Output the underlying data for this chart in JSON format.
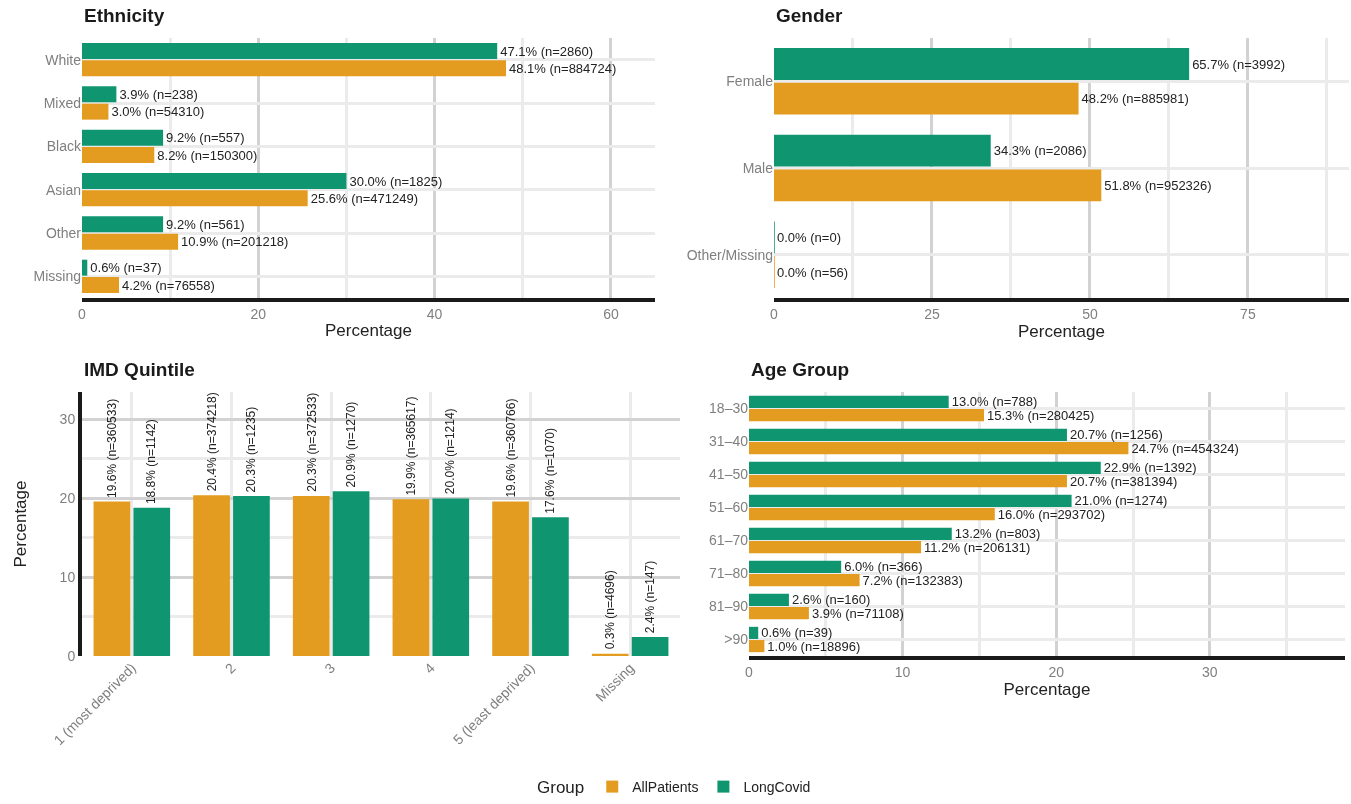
{
  "chart_data": [
    {
      "type": "bar",
      "orientation": "horizontal",
      "title": "Ethnicity",
      "xlabel": "Percentage",
      "categories": [
        "White",
        "Mixed",
        "Black",
        "Asian",
        "Other",
        "Missing"
      ],
      "xlim": [
        0,
        65
      ],
      "xticks": [
        0,
        20,
        40,
        60
      ],
      "grid": true,
      "legend": "bottom",
      "legend_title": "Group",
      "series": [
        {
          "name": "AllPatients",
          "color": "#e39c1f",
          "values": [
            48.1,
            3.0,
            8.2,
            25.6,
            10.9,
            4.2
          ],
          "value_labels": [
            "48.1% (n=884724)",
            "3.0% (n=54310)",
            "8.2% (n=150300)",
            "25.6% (n=471249)",
            "10.9% (n=201218)",
            "4.2% (n=76558)"
          ]
        },
        {
          "name": "LongCovid",
          "color": "#0f9670",
          "values": [
            47.1,
            3.9,
            9.2,
            30.0,
            9.2,
            0.6
          ],
          "value_labels": [
            "47.1% (n=2860)",
            "3.9% (n=238)",
            "9.2% (n=557)",
            "30.0% (n=1825)",
            "9.2% (n=561)",
            "0.6% (n=37)"
          ]
        }
      ]
    },
    {
      "type": "bar",
      "orientation": "horizontal",
      "title": "Gender",
      "xlabel": "Percentage",
      "categories": [
        "Female",
        "Male",
        "Other/Missing"
      ],
      "xlim": [
        0,
        91
      ],
      "xticks": [
        0,
        25,
        50,
        75
      ],
      "grid": true,
      "legend": "bottom",
      "series": [
        {
          "name": "AllPatients",
          "color": "#e39c1f",
          "values": [
            48.2,
            51.8,
            0.0
          ],
          "value_labels": [
            "48.2% (n=885981)",
            "51.8% (n=952326)",
            "0.0% (n=56)"
          ]
        },
        {
          "name": "LongCovid",
          "color": "#0f9670",
          "values": [
            65.7,
            34.3,
            0.0
          ],
          "value_labels": [
            "65.7% (n=3992)",
            "34.3% (n=2086)",
            "0.0% (n=0)"
          ]
        }
      ]
    },
    {
      "type": "bar",
      "title": "IMD Quintile",
      "ylabel": "Percentage",
      "categories": [
        "1 (most deprived)",
        "2",
        "3",
        "4",
        "5 (least deprived)",
        "Missing"
      ],
      "ylim": [
        0,
        33.5
      ],
      "yticks": [
        0,
        10,
        20,
        30
      ],
      "grid": true,
      "legend": "bottom",
      "series": [
        {
          "name": "AllPatients",
          "color": "#e39c1f",
          "values": [
            19.6,
            20.4,
            20.3,
            19.9,
            19.6,
            0.3
          ],
          "value_labels": [
            "19.6% (n=360533)",
            "20.4% (n=374218)",
            "20.3% (n=372533)",
            "19.9% (n=365617)",
            "19.6% (n=360766)",
            "0.3% (n=4696)"
          ]
        },
        {
          "name": "LongCovid",
          "color": "#0f9670",
          "values": [
            18.8,
            20.3,
            20.9,
            20.0,
            17.6,
            2.4
          ],
          "value_labels": [
            "18.8% (n=1142)",
            "20.3% (n=1235)",
            "20.9% (n=1270)",
            "20.0% (n=1214)",
            "17.6% (n=1070)",
            "2.4% (n=147)"
          ]
        }
      ]
    },
    {
      "type": "bar",
      "orientation": "horizontal",
      "title": "Age Group",
      "xlabel": "Percentage",
      "categories": [
        "18–30",
        "31–40",
        "41–50",
        "51–60",
        "61–70",
        "71–80",
        "81–90",
        ">90"
      ],
      "xlim": [
        0,
        38.8
      ],
      "xticks": [
        0,
        10,
        20,
        30
      ],
      "grid": true,
      "legend": "bottom",
      "series": [
        {
          "name": "AllPatients",
          "color": "#e39c1f",
          "values": [
            15.3,
            24.7,
            20.7,
            16.0,
            11.2,
            7.2,
            3.9,
            1.0
          ],
          "value_labels": [
            "15.3% (n=280425)",
            "24.7% (n=454324)",
            "20.7% (n=381394)",
            "16.0% (n=293702)",
            "11.2% (n=206131)",
            "7.2% (n=132383)",
            "3.9% (n=71108)",
            "1.0% (n=18896)"
          ]
        },
        {
          "name": "LongCovid",
          "color": "#0f9670",
          "values": [
            13.0,
            20.7,
            22.9,
            21.0,
            13.2,
            6.0,
            2.6,
            0.6
          ],
          "value_labels": [
            "13.0% (n=788)",
            "20.7% (n=1256)",
            "22.9% (n=1392)",
            "21.0% (n=1274)",
            "13.2% (n=803)",
            "6.0% (n=366)",
            "2.6% (n=160)",
            "0.6% (n=39)"
          ]
        }
      ]
    }
  ]
}
